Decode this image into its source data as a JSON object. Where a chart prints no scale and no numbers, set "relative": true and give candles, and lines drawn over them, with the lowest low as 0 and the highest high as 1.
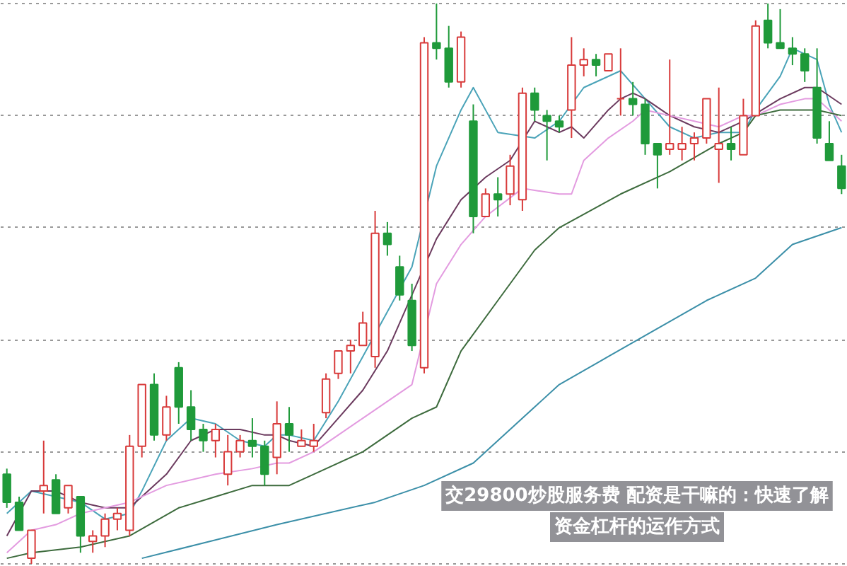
{
  "chart_data": {
    "type": "candlestick",
    "relative": true,
    "title": "交29800炒股服务费 配资是干嘛的：快速了解资金杠杆的运作方式",
    "grid": "y",
    "categories": [
      null,
      null,
      null,
      null,
      null,
      null,
      null,
      null,
      null,
      null,
      null,
      null,
      null,
      null,
      null,
      null,
      null,
      null,
      null,
      null,
      null,
      null,
      null,
      null,
      null,
      null,
      null,
      null,
      null,
      null,
      null,
      null,
      null,
      null,
      null,
      null,
      null,
      null,
      null,
      null,
      null,
      null,
      null,
      null,
      null,
      null,
      null,
      null,
      null,
      null,
      null,
      null,
      null,
      null,
      null,
      null,
      null,
      null,
      null,
      null,
      null,
      null,
      null,
      null,
      null,
      null,
      null,
      null,
      null
    ],
    "ohlc": [
      [
        0.16,
        0.17,
        0.1,
        0.11
      ],
      [
        0.11,
        0.12,
        0.06,
        0.06
      ],
      [
        0.01,
        0.06,
        0.0,
        0.06
      ],
      [
        0.13,
        0.22,
        0.09,
        0.14
      ],
      [
        0.15,
        0.16,
        0.09,
        0.09
      ],
      [
        0.1,
        0.14,
        0.09,
        0.14
      ],
      [
        0.12,
        0.12,
        0.02,
        0.05
      ],
      [
        0.04,
        0.06,
        0.02,
        0.05
      ],
      [
        0.05,
        0.09,
        0.03,
        0.08
      ],
      [
        0.08,
        0.1,
        0.06,
        0.09
      ],
      [
        0.06,
        0.23,
        0.05,
        0.21
      ],
      [
        0.21,
        0.32,
        0.19,
        0.32
      ],
      [
        0.32,
        0.34,
        0.22,
        0.23
      ],
      [
        0.23,
        0.3,
        0.22,
        0.28
      ],
      [
        0.35,
        0.36,
        0.25,
        0.28
      ],
      [
        0.28,
        0.31,
        0.22,
        0.24
      ],
      [
        0.24,
        0.25,
        0.2,
        0.22
      ],
      [
        0.22,
        0.25,
        0.19,
        0.24
      ],
      [
        0.16,
        0.23,
        0.14,
        0.2
      ],
      [
        0.2,
        0.23,
        0.19,
        0.22
      ],
      [
        0.22,
        0.26,
        0.19,
        0.21
      ],
      [
        0.21,
        0.22,
        0.14,
        0.16
      ],
      [
        0.19,
        0.29,
        0.16,
        0.25
      ],
      [
        0.25,
        0.28,
        0.2,
        0.23
      ],
      [
        0.21,
        0.24,
        0.21,
        0.22
      ],
      [
        0.21,
        0.25,
        0.2,
        0.22
      ],
      [
        0.27,
        0.34,
        0.26,
        0.33
      ],
      [
        0.34,
        0.38,
        0.33,
        0.38
      ],
      [
        0.38,
        0.4,
        0.34,
        0.39
      ],
      [
        0.39,
        0.45,
        0.39,
        0.43
      ],
      [
        0.37,
        0.63,
        0.35,
        0.59
      ],
      [
        0.59,
        0.61,
        0.55,
        0.57
      ],
      [
        0.53,
        0.55,
        0.47,
        0.48
      ],
      [
        0.47,
        0.5,
        0.38,
        0.39
      ],
      [
        0.35,
        0.94,
        0.34,
        0.93
      ],
      [
        0.93,
        1.0,
        0.9,
        0.92
      ],
      [
        0.92,
        0.96,
        0.85,
        0.86
      ],
      [
        0.86,
        0.95,
        0.85,
        0.94
      ],
      [
        0.79,
        0.82,
        0.59,
        0.62
      ],
      [
        0.62,
        0.67,
        0.62,
        0.66
      ],
      [
        0.66,
        0.69,
        0.62,
        0.65
      ],
      [
        0.66,
        0.73,
        0.64,
        0.71
      ],
      [
        0.65,
        0.85,
        0.63,
        0.84
      ],
      [
        0.84,
        0.85,
        0.79,
        0.81
      ],
      [
        0.8,
        0.81,
        0.72,
        0.79
      ],
      [
        0.79,
        0.8,
        0.77,
        0.78
      ],
      [
        0.81,
        0.94,
        0.76,
        0.89
      ],
      [
        0.89,
        0.92,
        0.87,
        0.9
      ],
      [
        0.9,
        0.91,
        0.87,
        0.89
      ],
      [
        0.88,
        0.91,
        0.88,
        0.91
      ],
      [
        0.83,
        0.92,
        0.8,
        0.83
      ],
      [
        0.83,
        0.86,
        0.8,
        0.82
      ],
      [
        0.82,
        0.83,
        0.73,
        0.75
      ],
      [
        0.75,
        0.75,
        0.67,
        0.73
      ],
      [
        0.74,
        0.9,
        0.73,
        0.75
      ],
      [
        0.74,
        0.78,
        0.72,
        0.75
      ],
      [
        0.75,
        0.77,
        0.72,
        0.76
      ],
      [
        0.76,
        0.83,
        0.75,
        0.83
      ],
      [
        0.74,
        0.85,
        0.68,
        0.75
      ],
      [
        0.75,
        0.78,
        0.72,
        0.74
      ],
      [
        0.73,
        0.83,
        0.73,
        0.8
      ],
      [
        0.8,
        0.97,
        0.8,
        0.96
      ],
      [
        0.97,
        1.0,
        0.92,
        0.93
      ],
      [
        0.93,
        0.99,
        0.92,
        0.92
      ],
      [
        0.92,
        0.94,
        0.89,
        0.91
      ],
      [
        0.91,
        0.92,
        0.86,
        0.88
      ],
      [
        0.85,
        0.92,
        0.75,
        0.76
      ],
      [
        0.75,
        0.79,
        0.72,
        0.72
      ],
      [
        0.71,
        0.73,
        0.66,
        0.67
      ]
    ],
    "series": [
      {
        "type": "line",
        "color": "#4aa3b8",
        "values": [
          0.09,
          null,
          0.13,
          null,
          null,
          null,
          0.11,
          null,
          0.08,
          null,
          0.09,
          0.13,
          null,
          0.22,
          null,
          0.26,
          null,
          0.25,
          null,
          0.22,
          null,
          0.21,
          0.23,
          0.23,
          null,
          0.22,
          null,
          0.29,
          null,
          0.37,
          null,
          null,
          null,
          0.53,
          null,
          0.71,
          null,
          0.81,
          0.85,
          null,
          0.77,
          null,
          null,
          0.76,
          null,
          0.79,
          null,
          0.85,
          null,
          null,
          0.88,
          null,
          0.83,
          null,
          0.78,
          null,
          0.76,
          null,
          0.77,
          null,
          0.77,
          0.81,
          null,
          0.87,
          0.92,
          null,
          0.9,
          0.82,
          0.77
        ]
      },
      {
        "type": "line",
        "color": "#6b3a5e",
        "values": [
          0.05,
          null,
          0.13,
          null,
          0.13,
          null,
          0.11,
          null,
          0.1,
          null,
          0.1,
          null,
          null,
          0.16,
          null,
          0.22,
          null,
          0.24,
          null,
          0.24,
          null,
          0.23,
          0.23,
          0.22,
          null,
          0.21,
          null,
          0.26,
          null,
          0.31,
          null,
          0.38,
          null,
          null,
          null,
          0.58,
          null,
          0.65,
          null,
          0.69,
          null,
          0.72,
          null,
          0.79,
          null,
          0.77,
          0.78,
          0.76,
          null,
          0.81,
          0.83,
          0.84,
          0.83,
          null,
          0.8,
          null,
          0.78,
          null,
          0.77,
          null,
          0.79,
          null,
          null,
          0.83,
          null,
          0.85,
          0.85,
          null,
          0.82
        ]
      },
      {
        "type": "line",
        "color": "#e39be0",
        "values": [
          0.02,
          null,
          0.06,
          null,
          0.07,
          null,
          0.09,
          null,
          0.1,
          null,
          0.11,
          null,
          null,
          0.14,
          null,
          null,
          null,
          0.16,
          null,
          null,
          0.17,
          null,
          0.18,
          0.18,
          null,
          0.2,
          null,
          0.23,
          null,
          0.26,
          null,
          0.29,
          null,
          0.32,
          null,
          0.5,
          null,
          0.57,
          null,
          0.62,
          null,
          null,
          0.67,
          null,
          null,
          0.66,
          0.66,
          0.72,
          null,
          0.76,
          null,
          0.79,
          0.81,
          null,
          0.8,
          null,
          0.79,
          null,
          0.78,
          null,
          0.8,
          0.8,
          null,
          0.82,
          null,
          0.83,
          0.83,
          null,
          0.79
        ]
      },
      {
        "type": "line",
        "color": "#3d6b3d",
        "values": [
          0.01,
          null,
          0.02,
          null,
          null,
          null,
          0.03,
          null,
          null,
          null,
          0.05,
          null,
          null,
          null,
          0.1,
          null,
          null,
          0.12,
          null,
          null,
          0.14,
          null,
          0.14,
          0.14,
          null,
          0.16,
          null,
          null,
          null,
          0.2,
          null,
          null,
          null,
          0.26,
          null,
          0.28,
          null,
          0.38,
          null,
          null,
          0.47,
          null,
          null,
          0.56,
          null,
          0.6,
          null,
          null,
          null,
          null,
          0.66,
          null,
          null,
          null,
          0.7,
          null,
          null,
          null,
          0.75,
          null,
          0.77,
          0.8,
          null,
          0.81,
          null,
          null,
          0.81,
          null,
          0.8
        ]
      },
      {
        "type": "line",
        "color": "#3b8fa8",
        "values": [
          null,
          null,
          null,
          null,
          null,
          null,
          null,
          null,
          null,
          null,
          null,
          0.01,
          null,
          null,
          null,
          null,
          null,
          null,
          null,
          null,
          null,
          null,
          0.07,
          null,
          null,
          null,
          null,
          null,
          null,
          null,
          0.11,
          null,
          null,
          null,
          0.14,
          null,
          null,
          null,
          0.18,
          null,
          null,
          null,
          null,
          null,
          null,
          0.32,
          null,
          null,
          null,
          0.37,
          null,
          null,
          null,
          0.42,
          null,
          null,
          null,
          0.47,
          null,
          null,
          null,
          0.51,
          null,
          null,
          0.57,
          null,
          null,
          null,
          0.6
        ]
      }
    ]
  }
}
